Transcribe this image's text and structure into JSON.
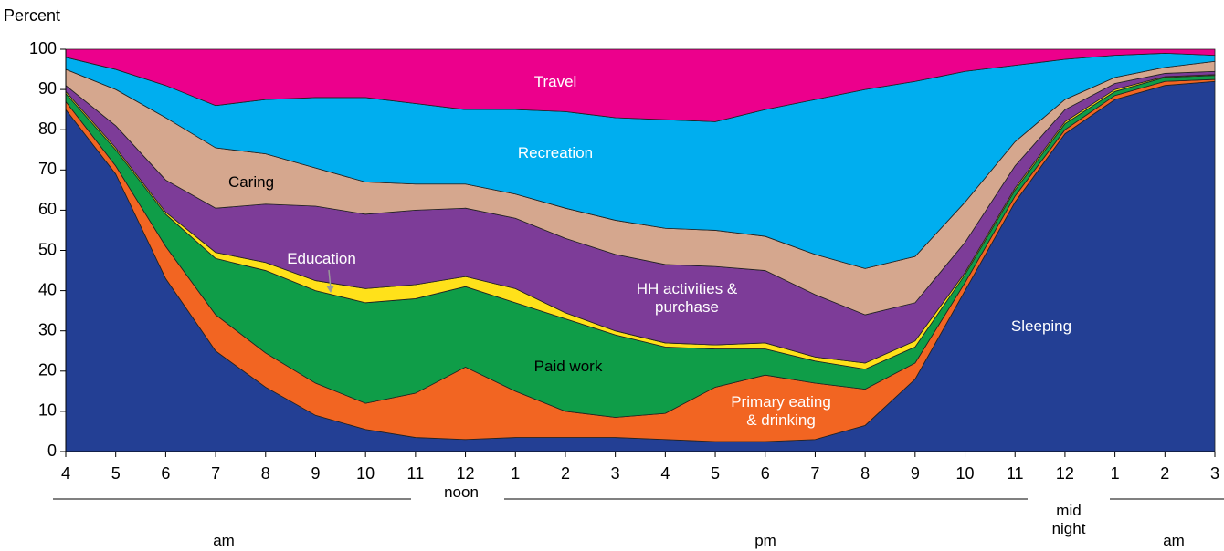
{
  "chart_data": {
    "type": "stacked_area",
    "y_axis_label": "Percent",
    "categories": [
      "4",
      "5",
      "6",
      "7",
      "8",
      "9",
      "10",
      "11",
      "12",
      "1",
      "2",
      "3",
      "4",
      "5",
      "6",
      "7",
      "8",
      "9",
      "10",
      "11",
      "12",
      "1",
      "2",
      "3"
    ],
    "period_labels": [
      "am",
      "noon",
      "pm",
      "mid night",
      "am"
    ],
    "ylim": [
      0,
      100
    ],
    "yticks": [
      0,
      10,
      20,
      30,
      40,
      50,
      60,
      70,
      80,
      90,
      100
    ],
    "series": [
      {
        "name": "Sleeping",
        "color": "#233f94",
        "values": [
          85,
          69,
          43,
          25,
          16,
          9,
          5.5,
          3.5,
          3,
          3.5,
          3.5,
          3.5,
          3,
          2.5,
          2.5,
          3,
          6.5,
          18,
          40,
          62,
          79,
          87.5,
          91,
          92
        ]
      },
      {
        "name": "Primary eating & drinking",
        "color": "#f26522",
        "values": [
          2,
          2,
          8,
          9,
          8.5,
          8,
          6.5,
          11,
          18,
          11.5,
          6.5,
          5,
          6.5,
          13.5,
          16.5,
          14,
          9,
          4,
          2,
          1.5,
          1,
          1,
          1,
          0.5
        ]
      },
      {
        "name": "Paid work",
        "color": "#0f9d48",
        "values": [
          2,
          4,
          8,
          14,
          20.5,
          23,
          25,
          23.5,
          20,
          22,
          23,
          20.5,
          16.5,
          9.5,
          6.5,
          5.5,
          5,
          4,
          2,
          1.5,
          1.5,
          1,
          1,
          1
        ]
      },
      {
        "name": "Education",
        "color": "#ffe11a",
        "values": [
          0.5,
          0.5,
          0.5,
          1.5,
          2,
          2.5,
          3.5,
          3.5,
          2.5,
          3.5,
          1.5,
          1,
          1,
          1,
          1.5,
          1,
          1.5,
          1.5,
          0.5,
          0.5,
          0.5,
          0.5,
          0.2,
          0.2
        ]
      },
      {
        "name": "HH activities & purchase",
        "color": "#7d3c98",
        "values": [
          1.5,
          5.5,
          8,
          11,
          14.5,
          18.5,
          18.5,
          18.5,
          17,
          17.5,
          18.5,
          19,
          19.5,
          19.5,
          18,
          15.5,
          12,
          9.5,
          7.5,
          5.5,
          3,
          1.5,
          0.8,
          0.8
        ]
      },
      {
        "name": "Caring",
        "color": "#d5a78e",
        "values": [
          4,
          9,
          15.5,
          15,
          12.5,
          9.5,
          8,
          6.5,
          6,
          6,
          7.5,
          8.5,
          9,
          9,
          8.5,
          10,
          11.5,
          11.5,
          10,
          6,
          2.5,
          1.5,
          1.5,
          2.5
        ]
      },
      {
        "name": "Recreation",
        "color": "#00aeef",
        "values": [
          3,
          5,
          8,
          10.5,
          13.5,
          17.5,
          21,
          20,
          18.5,
          21,
          24,
          25.5,
          27,
          27,
          31.5,
          38.5,
          44.5,
          43.5,
          32.5,
          19,
          10,
          5.5,
          3.5,
          1.5
        ]
      },
      {
        "name": "Travel",
        "color": "#ec008c",
        "values": [
          2,
          5,
          9,
          14,
          12.5,
          12,
          12,
          13.5,
          15,
          15,
          15.5,
          17,
          17.5,
          18,
          15,
          12.5,
          10,
          8,
          5.5,
          4,
          2.5,
          1.5,
          1,
          1.5
        ]
      }
    ]
  }
}
